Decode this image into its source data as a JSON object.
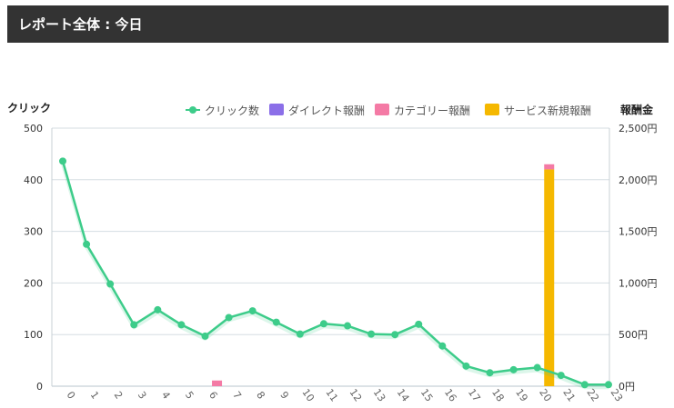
{
  "header": {
    "title": "レポート全体 : 今日"
  },
  "chart_data": {
    "type": "bar",
    "left_axis_title": "クリック",
    "right_axis_title": "報酬金",
    "left_ticks": [
      "0",
      "100",
      "200",
      "300",
      "400",
      "500"
    ],
    "right_ticks": [
      "0円",
      "500円",
      "1,000円",
      "1,500円",
      "2,000円",
      "2,500円"
    ],
    "ylim_left": [
      0,
      500
    ],
    "ylim_right": [
      0,
      2500
    ],
    "categories": [
      "0",
      "1",
      "2",
      "3",
      "4",
      "5",
      "6",
      "7",
      "8",
      "9",
      "10",
      "11",
      "12",
      "13",
      "14",
      "15",
      "16",
      "17",
      "18",
      "19",
      "20",
      "21",
      "22",
      "23"
    ],
    "legend": [
      {
        "label": "クリック数",
        "color": "#3dcc8a"
      },
      {
        "label": "ダイレクト報酬",
        "color": "#8b6fe8"
      },
      {
        "label": "カテゴリー報酬",
        "color": "#f47aa5"
      },
      {
        "label": "サービス新規報酬",
        "color": "#f5b800"
      }
    ],
    "clicks": [
      436,
      275,
      198,
      119,
      148,
      119,
      97,
      133,
      146,
      124,
      101,
      121,
      117,
      101,
      100,
      120,
      78,
      39,
      26,
      32,
      36,
      21,
      3,
      3
    ],
    "direct_reward": [
      0,
      0,
      0,
      0,
      0,
      0,
      0,
      0,
      0,
      0,
      0,
      0,
      0,
      0,
      0,
      0,
      0,
      0,
      0,
      0,
      0,
      0,
      0,
      0
    ],
    "category_reward": [
      0,
      0,
      0,
      0,
      0,
      0,
      55,
      0,
      0,
      0,
      0,
      0,
      0,
      0,
      0,
      0,
      0,
      0,
      0,
      0,
      50,
      0,
      0,
      0
    ],
    "service_new_reward": [
      0,
      0,
      0,
      0,
      0,
      0,
      0,
      0,
      0,
      0,
      0,
      0,
      0,
      0,
      0,
      0,
      0,
      0,
      0,
      0,
      2100,
      0,
      0,
      0
    ],
    "grid": true,
    "legend_position": "top-right"
  }
}
